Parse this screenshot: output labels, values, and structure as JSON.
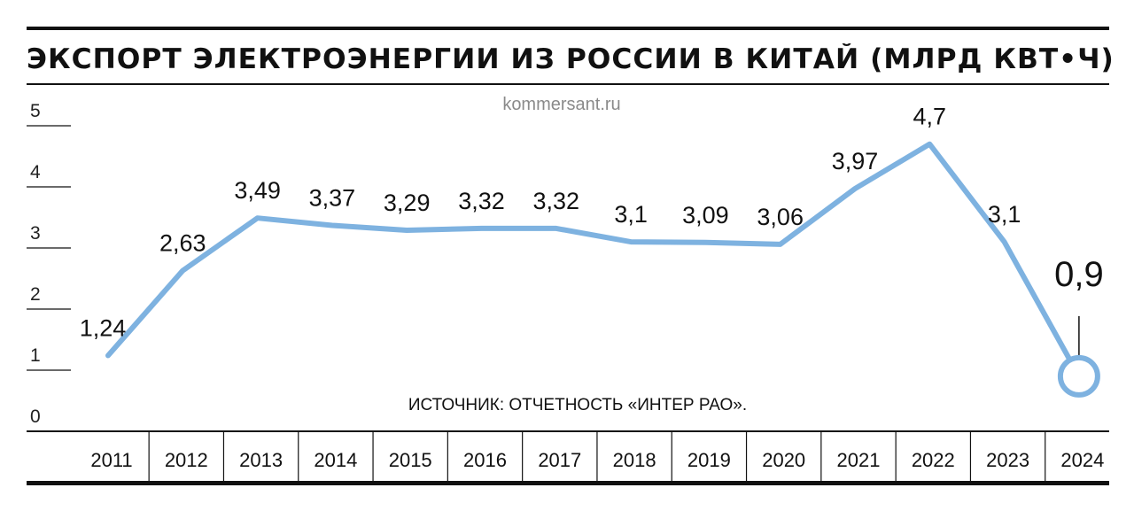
{
  "chart_data": {
    "type": "line",
    "title": "ЭКСПОРТ ЭЛЕКТРОЭНЕРГИИ ИЗ РОССИИ В КИТАЙ (МЛРД КВТ•Ч)",
    "categories": [
      "2011",
      "2012",
      "2013",
      "2014",
      "2015",
      "2016",
      "2017",
      "2018",
      "2019",
      "2020",
      "2021",
      "2022",
      "2023",
      "2024"
    ],
    "series": [
      {
        "values": [
          1.24,
          2.63,
          3.49,
          3.37,
          3.29,
          3.32,
          3.32,
          3.1,
          3.09,
          3.06,
          3.97,
          4.7,
          3.1,
          0.9
        ],
        "labels": [
          "1,24",
          "2,63",
          "3,49",
          "3,37",
          "3,29",
          "3,32",
          "3,32",
          "3,1",
          "3,09",
          "3,06",
          "3,97",
          "4,7",
          "3,1",
          "0,9"
        ]
      }
    ],
    "yticks": [
      "0",
      "1",
      "2",
      "3",
      "4",
      "5"
    ],
    "ylim": [
      0,
      5
    ],
    "xlabel": "",
    "ylabel": "",
    "grid": false,
    "highlight": "2024",
    "line_color": "#7eb2e0",
    "source": "ИСТОЧНИК: ОТЧЕТНОСТЬ «ИНТЕР РАО».",
    "watermark": "kommersant.ru"
  }
}
